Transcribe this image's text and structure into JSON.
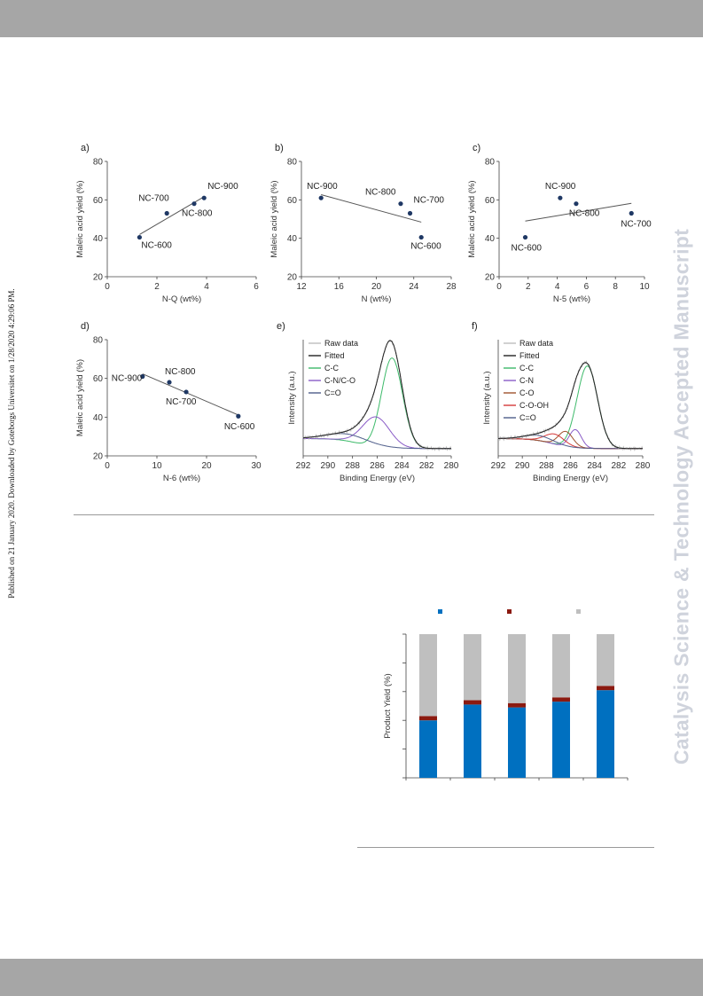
{
  "page": {
    "watermark": "Catalysis Science & Technology Accepted Manuscript",
    "published_note": "Published on 21 January 2020. Downloaded by Goteborgs Universitet on 1/28/2020 4:29:06 PM."
  },
  "chart_data": [
    {
      "panel": "a)",
      "type": "scatter",
      "xlabel": "N-Q (wt%)",
      "ylabel": "Maleic acid yield (%)",
      "xlim": [
        0,
        6
      ],
      "ylim": [
        20,
        80
      ],
      "xticks": [
        0,
        2,
        4,
        6
      ],
      "yticks": [
        20,
        40,
        60,
        80
      ],
      "points": [
        {
          "label": "NC-600",
          "x": 1.3,
          "y": 40.5
        },
        {
          "label": "NC-700",
          "x": 2.4,
          "y": 53
        },
        {
          "label": "NC-800",
          "x": 3.5,
          "y": 58
        },
        {
          "label": "NC-900",
          "x": 3.9,
          "y": 61
        }
      ]
    },
    {
      "panel": "b)",
      "type": "scatter",
      "xlabel": "N (wt%)",
      "ylabel": "Maleic acid yield (%)",
      "xlim": [
        12,
        28
      ],
      "ylim": [
        20,
        80
      ],
      "xticks": [
        12,
        16,
        20,
        24,
        28
      ],
      "yticks": [
        20,
        40,
        60,
        80
      ],
      "points": [
        {
          "label": "NC-900",
          "x": 14.1,
          "y": 61
        },
        {
          "label": "NC-800",
          "x": 22.6,
          "y": 58
        },
        {
          "label": "NC-700",
          "x": 23.6,
          "y": 53
        },
        {
          "label": "NC-600",
          "x": 24.8,
          "y": 40.5
        }
      ]
    },
    {
      "panel": "c)",
      "type": "scatter",
      "xlabel": "N-5 (wt%)",
      "ylabel": "Maleic acid yield (%)",
      "xlim": [
        0,
        10
      ],
      "ylim": [
        20,
        80
      ],
      "xticks": [
        0,
        2,
        4,
        6,
        8,
        10
      ],
      "yticks": [
        20,
        40,
        60,
        80
      ],
      "points": [
        {
          "label": "NC-600",
          "x": 1.8,
          "y": 40.5
        },
        {
          "label": "NC-900",
          "x": 4.2,
          "y": 61
        },
        {
          "label": "NC-800",
          "x": 5.3,
          "y": 58
        },
        {
          "label": "NC-700",
          "x": 9.1,
          "y": 53
        }
      ]
    },
    {
      "panel": "d)",
      "type": "scatter",
      "xlabel": "N-6 (wt%)",
      "ylabel": "Maleic acid yield (%)",
      "xlim": [
        0,
        30
      ],
      "ylim": [
        20,
        80
      ],
      "xticks": [
        0,
        10,
        20,
        30
      ],
      "yticks": [
        20,
        40,
        60,
        80
      ],
      "points": [
        {
          "label": "NC-900",
          "x": 7.1,
          "y": 61
        },
        {
          "label": "NC-800",
          "x": 12.5,
          "y": 58
        },
        {
          "label": "NC-700",
          "x": 15.9,
          "y": 53
        },
        {
          "label": "NC-600",
          "x": 26.4,
          "y": 40.5
        }
      ]
    },
    {
      "panel": "e)",
      "type": "line",
      "xlabel": "Binding Energy (eV)",
      "ylabel": "Intensity (a.u.)",
      "xlim": [
        292,
        280
      ],
      "xticks": [
        292,
        290,
        288,
        286,
        284,
        282,
        280
      ],
      "legend": [
        {
          "name": "Raw data",
          "color": "#bdbdbd"
        },
        {
          "name": "Fitted",
          "color": "#222222"
        },
        {
          "name": "C-C",
          "color": "#3dba6a"
        },
        {
          "name": "C-N/C-O",
          "color": "#8a5cc7"
        },
        {
          "name": "C=O",
          "color": "#4e5d8a"
        }
      ],
      "series": [
        {
          "color": "#3dba6a",
          "peaks": [
            {
              "c": 284.8,
              "h": 0.9,
              "w": 0.85
            }
          ]
        },
        {
          "color": "#8a5cc7",
          "peaks": [
            {
              "c": 286.1,
              "h": 0.3,
              "w": 1.1
            }
          ]
        },
        {
          "color": "#4e5d8a",
          "peaks": [
            {
              "c": 288.2,
              "h": 0.07,
              "w": 1.8
            }
          ]
        }
      ]
    },
    {
      "panel": "f)",
      "type": "line",
      "xlabel": "Binding Energy (eV)",
      "ylabel": "Intensity (a.u.)",
      "xlim": [
        292,
        280
      ],
      "xticks": [
        292,
        290,
        288,
        286,
        284,
        282,
        280
      ],
      "legend": [
        {
          "name": "Raw data",
          "color": "#bdbdbd"
        },
        {
          "name": "Fitted",
          "color": "#222222"
        },
        {
          "name": "C-C",
          "color": "#3dba6a"
        },
        {
          "name": "C-N",
          "color": "#8a5cc7"
        },
        {
          "name": "C-O",
          "color": "#a0522d"
        },
        {
          "name": "C-O-OH",
          "color": "#d43a3a"
        },
        {
          "name": "C=O",
          "color": "#4e5d8a"
        }
      ],
      "series": [
        {
          "color": "#3dba6a",
          "peaks": [
            {
              "c": 284.6,
              "h": 0.82,
              "w": 0.85
            }
          ]
        },
        {
          "color": "#8a5cc7",
          "peaks": [
            {
              "c": 285.6,
              "h": 0.18,
              "w": 0.5
            }
          ]
        },
        {
          "color": "#a0522d",
          "peaks": [
            {
              "c": 286.4,
              "h": 0.15,
              "w": 0.6
            }
          ]
        },
        {
          "color": "#d43a3a",
          "peaks": [
            {
              "c": 287.3,
              "h": 0.1,
              "w": 0.8
            }
          ]
        },
        {
          "color": "#4e5d8a",
          "peaks": [
            {
              "c": 288.6,
              "h": 0.05,
              "w": 1.2
            }
          ]
        }
      ]
    },
    {
      "type": "bar",
      "stacked": true,
      "ylabel": "Product Yield (%)",
      "ylim": [
        0,
        100
      ],
      "categories": [
        "",
        "",
        "",
        "",
        ""
      ],
      "series": [
        {
          "color": "#0070c0",
          "values": [
            40,
            51,
            49,
            53,
            61
          ]
        },
        {
          "color": "#8b1a10",
          "values": [
            3,
            3,
            3,
            3,
            3
          ]
        },
        {
          "color": "#bfbfbf",
          "values": [
            57,
            46,
            48,
            44,
            36
          ]
        }
      ]
    }
  ]
}
